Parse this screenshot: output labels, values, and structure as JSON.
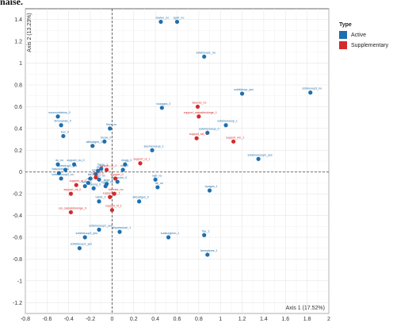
{
  "header": {
    "snippet": "naise."
  },
  "chart_data": {
    "type": "scatter",
    "xlabel": "Axis 1 (17.52%)",
    "ylabel": "Axis 2 (13.23%)",
    "xlim": [
      -0.8,
      2.0
    ],
    "ylim": [
      -1.3,
      1.5
    ],
    "xticks": [
      "-0.8",
      "-0.6",
      "-0.4",
      "-0.2",
      "0",
      "0.2",
      "0.4",
      "0.6",
      "0.8",
      "1",
      "1.2",
      "1.4",
      "1.6",
      "1.8",
      "2"
    ],
    "yticks": [
      "1.4",
      "1.2",
      "1",
      "0.8",
      "0.6",
      "0.4",
      "0.2",
      "0",
      "-0.2",
      "-0.4",
      "-0.6",
      "-0.8",
      "-1",
      "-1.2"
    ],
    "grid": true,
    "reference_lines": {
      "x": 0,
      "y": 0
    },
    "legend": {
      "title": "Type",
      "position": "right"
    },
    "colors": {
      "Active": "#1f6fad",
      "Supplementary": "#d42a2a"
    },
    "series": [
      {
        "name": "Active",
        "points": [
          {
            "x": 0.45,
            "y": 1.38,
            "label": "bavien_no"
          },
          {
            "x": 0.6,
            "y": 1.38,
            "label": "sgd0_no"
          },
          {
            "x": 0.85,
            "y": 1.06,
            "label": "sofafcloup1_no"
          },
          {
            "x": 1.2,
            "y": 0.72,
            "label": "sofaflcloup_yes"
          },
          {
            "x": 1.83,
            "y": 0.73,
            "label": "sofaneoup3_no"
          },
          {
            "x": 0.46,
            "y": 0.59,
            "label": "viusages_0"
          },
          {
            "x": -0.5,
            "y": 0.51,
            "label": "sosecombiniss_0"
          },
          {
            "x": -0.47,
            "y": 0.43,
            "label": "femsoplaie_0"
          },
          {
            "x": -0.45,
            "y": 0.33,
            "label": "fecr_0"
          },
          {
            "x": -0.02,
            "y": 0.4,
            "label": "fiber_no"
          },
          {
            "x": -0.07,
            "y": 0.28,
            "label": "bicsie_0"
          },
          {
            "x": -0.18,
            "y": 0.24,
            "label": "alfesatges_1"
          },
          {
            "x": 0.37,
            "y": 0.2,
            "label": "siesmenceup_1"
          },
          {
            "x": 0.88,
            "y": 0.36,
            "label": "sofamenosup_0"
          },
          {
            "x": 1.05,
            "y": 0.43,
            "label": "sofamenosup_1"
          },
          {
            "x": 1.35,
            "y": 0.12,
            "label": "sofamenosup2_yes"
          },
          {
            "x": -0.5,
            "y": 0.07,
            "label": "dz_no"
          },
          {
            "x": -0.35,
            "y": 0.07,
            "label": "support_no_0"
          },
          {
            "x": -0.49,
            "y": -0.01,
            "label": "bascoutrap_0"
          },
          {
            "x": -0.47,
            "y": -0.06,
            "label": "sofamenoup2_no"
          },
          {
            "x": -0.43,
            "y": 0.02,
            "label": "fouleseup2_yes"
          },
          {
            "x": -0.1,
            "y": 0.03,
            "label": "fanse_1"
          },
          {
            "x": -0.15,
            "y": -0.02,
            "label": "rebroy_1"
          },
          {
            "x": -0.2,
            "y": -0.06,
            "label": "tkz_no"
          },
          {
            "x": -0.22,
            "y": -0.1,
            "label": "vip_0"
          },
          {
            "x": -0.25,
            "y": -0.13,
            "label": "nuisat_1"
          },
          {
            "x": -0.05,
            "y": -0.11,
            "label": "fanst_1"
          },
          {
            "x": -0.17,
            "y": -0.15,
            "label": "fanmg_0"
          },
          {
            "x": -0.12,
            "y": -0.07,
            "label": "sqz_rel"
          },
          {
            "x": 0.05,
            "y": -0.09,
            "label": "aquaporin_0"
          },
          {
            "x": -0.06,
            "y": -0.13,
            "label": "egrd0_no"
          },
          {
            "x": 0.1,
            "y": 0.02,
            "label": "mut_0"
          },
          {
            "x": -0.13,
            "y": 0.01,
            "label": "gs_0"
          },
          {
            "x": 0.12,
            "y": 0.07,
            "label": "mugg_0"
          },
          {
            "x": 0.4,
            "y": -0.07,
            "label": "vgxi_no"
          },
          {
            "x": 0.42,
            "y": -0.14,
            "label": "dk_no"
          },
          {
            "x": 0.25,
            "y": -0.27,
            "label": "alfesatges_0"
          },
          {
            "x": 0.9,
            "y": -0.17,
            "label": "viyages_1"
          },
          {
            "x": -0.12,
            "y": -0.27,
            "label": "vabilz_0"
          },
          {
            "x": -0.12,
            "y": -0.53,
            "label": "sofamenoup2_yes"
          },
          {
            "x": -0.25,
            "y": -0.6,
            "label": "sofafdeoup3_yes"
          },
          {
            "x": -0.3,
            "y": -0.7,
            "label": "sofafdeoup1_yes"
          },
          {
            "x": 0.07,
            "y": -0.55,
            "label": "slispasscuse_1"
          },
          {
            "x": 0.52,
            "y": -0.6,
            "label": "sudsurgieon_1"
          },
          {
            "x": 0.85,
            "y": -0.58,
            "label": "fise_1"
          },
          {
            "x": 0.88,
            "y": -0.76,
            "label": "fameptyme_1"
          }
        ]
      },
      {
        "name": "Supplementary",
        "points": [
          {
            "x": 0.79,
            "y": 0.6,
            "label": "ldeeres_no"
          },
          {
            "x": 0.8,
            "y": 0.51,
            "label": "support_cassatdrukinge_1"
          },
          {
            "x": 0.78,
            "y": 0.31,
            "label": "support_sel_1"
          },
          {
            "x": 1.12,
            "y": 0.28,
            "label": "support_nm_1"
          },
          {
            "x": 0.26,
            "y": 0.08,
            "label": "support_ut_1"
          },
          {
            "x": -0.05,
            "y": 0.02,
            "label": "support_uc_0"
          },
          {
            "x": 0.03,
            "y": -0.06,
            "label": "suppprt_0"
          },
          {
            "x": -0.15,
            "y": -0.05,
            "label": "support_0"
          },
          {
            "x": -0.33,
            "y": -0.12,
            "label": "support_uf_0"
          },
          {
            "x": -0.38,
            "y": -0.2,
            "label": "support_mt_0"
          },
          {
            "x": -0.02,
            "y": -0.23,
            "label": "support_bc_1"
          },
          {
            "x": 0.02,
            "y": -0.2,
            "label": "idereles_no"
          },
          {
            "x": 0.0,
            "y": -0.35,
            "label": "support_id_1"
          },
          {
            "x": -0.38,
            "y": -0.37,
            "label": "sul_cassatdrukinge_0"
          }
        ]
      }
    ]
  }
}
